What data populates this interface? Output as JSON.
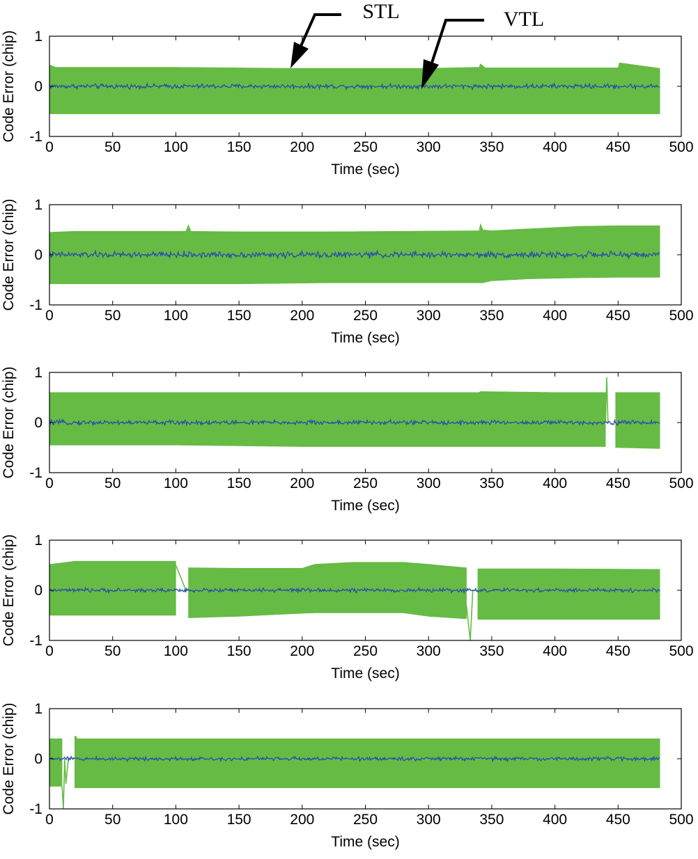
{
  "colors": {
    "stl": "#66bb44",
    "vtl": "#2b4ea8",
    "axes": "#000000",
    "background": "#ffffff"
  },
  "annotations": [
    {
      "label": "STL",
      "points_to": "green envelope, panel 1"
    },
    {
      "label": "VTL",
      "points_to": "blue trace, panel 1"
    }
  ],
  "chart_data": [
    {
      "type": "line",
      "panel": 1,
      "xlabel": "Time (sec)",
      "ylabel": "Code Error (chip)",
      "xlim": [
        0,
        500
      ],
      "ylim": [
        -1,
        1
      ],
      "xticks": [
        0,
        50,
        100,
        150,
        200,
        250,
        300,
        350,
        400,
        450,
        500
      ],
      "yticks": [
        1,
        0,
        -1
      ],
      "series": [
        {
          "name": "STL",
          "style": "dense oscillation envelope",
          "x": [
            0,
            1,
            5,
            50,
            100,
            150,
            183,
            190,
            200,
            250,
            300,
            340,
            341,
            345,
            400,
            450,
            451,
            483
          ],
          "upper": [
            0.42,
            0.42,
            0.38,
            0.38,
            0.38,
            0.37,
            0.36,
            0.36,
            0.36,
            0.36,
            0.36,
            0.38,
            0.45,
            0.37,
            0.37,
            0.37,
            0.47,
            0.36
          ],
          "lower": [
            -0.55,
            -0.55,
            -0.55,
            -0.55,
            -0.55,
            -0.55,
            -0.55,
            -0.55,
            -0.55,
            -0.55,
            -0.55,
            -0.55,
            -0.55,
            -0.55,
            -0.55,
            -0.55,
            -0.55,
            -0.55
          ]
        },
        {
          "name": "VTL",
          "style": "noisy line near zero",
          "noise_amplitude": 0.03,
          "x": [
            0,
            483
          ],
          "y": [
            0,
            0
          ]
        }
      ]
    },
    {
      "type": "line",
      "panel": 2,
      "xlabel": "Time (sec)",
      "ylabel": "Code Error (chip)",
      "xlim": [
        0,
        500
      ],
      "ylim": [
        -1,
        1
      ],
      "xticks": [
        0,
        50,
        100,
        150,
        200,
        250,
        300,
        350,
        400,
        450,
        500
      ],
      "yticks": [
        1,
        0,
        -1
      ],
      "series": [
        {
          "name": "STL",
          "style": "dense oscillation envelope",
          "x": [
            0,
            1,
            20,
            108,
            110,
            112,
            150,
            220,
            340,
            341,
            343,
            350,
            380,
            420,
            450,
            483
          ],
          "upper": [
            0.45,
            0.45,
            0.47,
            0.47,
            0.6,
            0.47,
            0.46,
            0.46,
            0.48,
            0.62,
            0.5,
            0.48,
            0.52,
            0.57,
            0.58,
            0.58
          ],
          "lower": [
            -0.58,
            -0.58,
            -0.58,
            -0.58,
            -0.58,
            -0.58,
            -0.58,
            -0.56,
            -0.56,
            -0.56,
            -0.56,
            -0.52,
            -0.48,
            -0.46,
            -0.45,
            -0.45
          ]
        },
        {
          "name": "VTL",
          "style": "noisy line near zero",
          "noise_amplitude": 0.04,
          "x": [
            0,
            483
          ],
          "y": [
            0,
            0
          ]
        }
      ]
    },
    {
      "type": "line",
      "panel": 3,
      "xlabel": "Time (sec)",
      "ylabel": "Code Error (chip)",
      "xlim": [
        0,
        500
      ],
      "ylim": [
        -1,
        1
      ],
      "xticks": [
        0,
        50,
        100,
        150,
        200,
        250,
        300,
        350,
        400,
        450,
        500
      ],
      "yticks": [
        1,
        0,
        -1
      ],
      "series": [
        {
          "name": "STL",
          "style": "dense oscillation envelope",
          "x": [
            0,
            50,
            100,
            200,
            300,
            340,
            341,
            400,
            440,
            null,
            448,
            450,
            483
          ],
          "upper": [
            0.6,
            0.6,
            0.6,
            0.6,
            0.6,
            0.6,
            0.62,
            0.6,
            0.6,
            null,
            0.6,
            0.6,
            0.6
          ],
          "lower": [
            -0.45,
            -0.45,
            -0.45,
            -0.48,
            -0.48,
            -0.48,
            -0.48,
            -0.48,
            -0.48,
            null,
            -0.5,
            -0.5,
            -0.52
          ]
        },
        {
          "name": "STL-spike",
          "style": "line",
          "x": [
            440,
            441,
            442
          ],
          "y": [
            0.0,
            0.9,
            0.0
          ]
        },
        {
          "name": "VTL",
          "style": "noisy line near zero",
          "noise_amplitude": 0.03,
          "x": [
            0,
            483
          ],
          "y": [
            0,
            0
          ]
        }
      ]
    },
    {
      "type": "line",
      "panel": 4,
      "xlabel": "Time (sec)",
      "ylabel": "Code Error (chip)",
      "xlim": [
        0,
        500
      ],
      "ylim": [
        -1,
        1
      ],
      "xticks": [
        0,
        50,
        100,
        150,
        200,
        250,
        300,
        350,
        400,
        450,
        500
      ],
      "yticks": [
        1,
        0,
        -1
      ],
      "series": [
        {
          "name": "STL",
          "style": "dense oscillation envelope",
          "x": [
            0,
            1,
            20,
            100,
            null,
            110,
            150,
            200,
            210,
            240,
            280,
            300,
            330,
            null,
            339,
            400,
            483
          ],
          "upper": [
            0.52,
            0.52,
            0.58,
            0.58,
            null,
            0.45,
            0.44,
            0.44,
            0.52,
            0.56,
            0.56,
            0.52,
            0.45,
            null,
            0.43,
            0.43,
            0.42
          ],
          "lower": [
            -0.5,
            -0.5,
            -0.5,
            -0.5,
            null,
            -0.55,
            -0.52,
            -0.46,
            -0.45,
            -0.45,
            -0.45,
            -0.52,
            -0.57,
            null,
            -0.58,
            -0.58,
            -0.58
          ]
        },
        {
          "name": "STL-transient-1",
          "style": "line",
          "x": [
            100,
            104,
            108,
            110
          ],
          "y": [
            0.5,
            0.25,
            0.0,
            0.0
          ]
        },
        {
          "name": "STL-transient-2",
          "style": "line",
          "x": [
            330,
            333,
            335,
            337
          ],
          "y": [
            -0.3,
            -1.0,
            0.0,
            0.0
          ]
        },
        {
          "name": "VTL",
          "style": "noisy line near zero",
          "noise_amplitude": 0.025,
          "x": [
            0,
            483
          ],
          "y": [
            0,
            0
          ]
        }
      ]
    },
    {
      "type": "line",
      "panel": 5,
      "xlabel": "Time (sec)",
      "ylabel": "Code Error (chip)",
      "xlim": [
        0,
        500
      ],
      "ylim": [
        -1,
        1
      ],
      "xticks": [
        0,
        50,
        100,
        150,
        200,
        250,
        300,
        350,
        400,
        450,
        500
      ],
      "yticks": [
        1,
        0,
        -1
      ],
      "series": [
        {
          "name": "STL",
          "style": "dense oscillation envelope",
          "x": [
            0,
            10,
            null,
            20,
            21,
            22,
            100,
            200,
            300,
            400,
            483
          ],
          "upper": [
            0.4,
            0.4,
            null,
            0.45,
            0.45,
            0.4,
            0.4,
            0.4,
            0.4,
            0.4,
            0.4
          ],
          "lower": [
            -0.55,
            -0.55,
            null,
            -0.58,
            -0.58,
            -0.58,
            -0.58,
            -0.58,
            -0.58,
            -0.58,
            -0.58
          ]
        },
        {
          "name": "STL-transient",
          "style": "line",
          "x": [
            10,
            11,
            12,
            13,
            15,
            18,
            20
          ],
          "y": [
            -0.55,
            -1.0,
            0.0,
            -0.5,
            0.0,
            0.02,
            0.0
          ]
        },
        {
          "name": "VTL",
          "style": "noisy line near zero",
          "noise_amplitude": 0.025,
          "x": [
            0,
            483
          ],
          "y": [
            0,
            0
          ]
        }
      ]
    }
  ]
}
